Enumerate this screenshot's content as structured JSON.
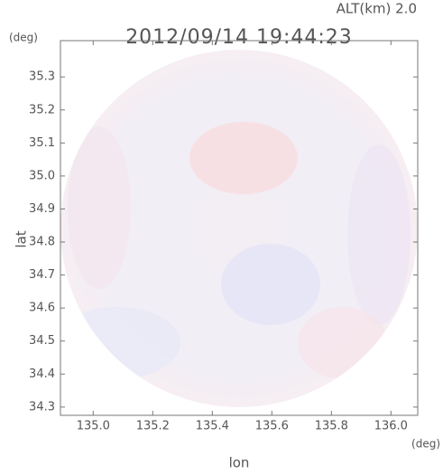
{
  "chart_data": {
    "type": "radar-image",
    "title": "2012/09/14 19:44:23",
    "annotation": "ALT(km) 2.0",
    "ylabel": "lat",
    "ylabel_unit": "(deg)",
    "xlabel": "lon",
    "xlabel_unit": "(deg)",
    "xlim": [
      134.89,
      136.09
    ],
    "ylim": [
      34.275,
      35.41
    ],
    "xticks": [
      {
        "value": 135,
        "label": "135.0"
      },
      {
        "value": 135.2,
        "label": "135.2"
      },
      {
        "value": 135.4,
        "label": "135.4"
      },
      {
        "value": 135.6,
        "label": "135.6"
      },
      {
        "value": 135.8,
        "label": "135.8"
      },
      {
        "value": 136,
        "label": "136.0"
      }
    ],
    "yticks": [
      34.3,
      34.4,
      34.5,
      34.6,
      34.7,
      34.8,
      34.9,
      {
        "value": 35,
        "label": "35.0"
      },
      35.1,
      35.2,
      35.3
    ]
  }
}
